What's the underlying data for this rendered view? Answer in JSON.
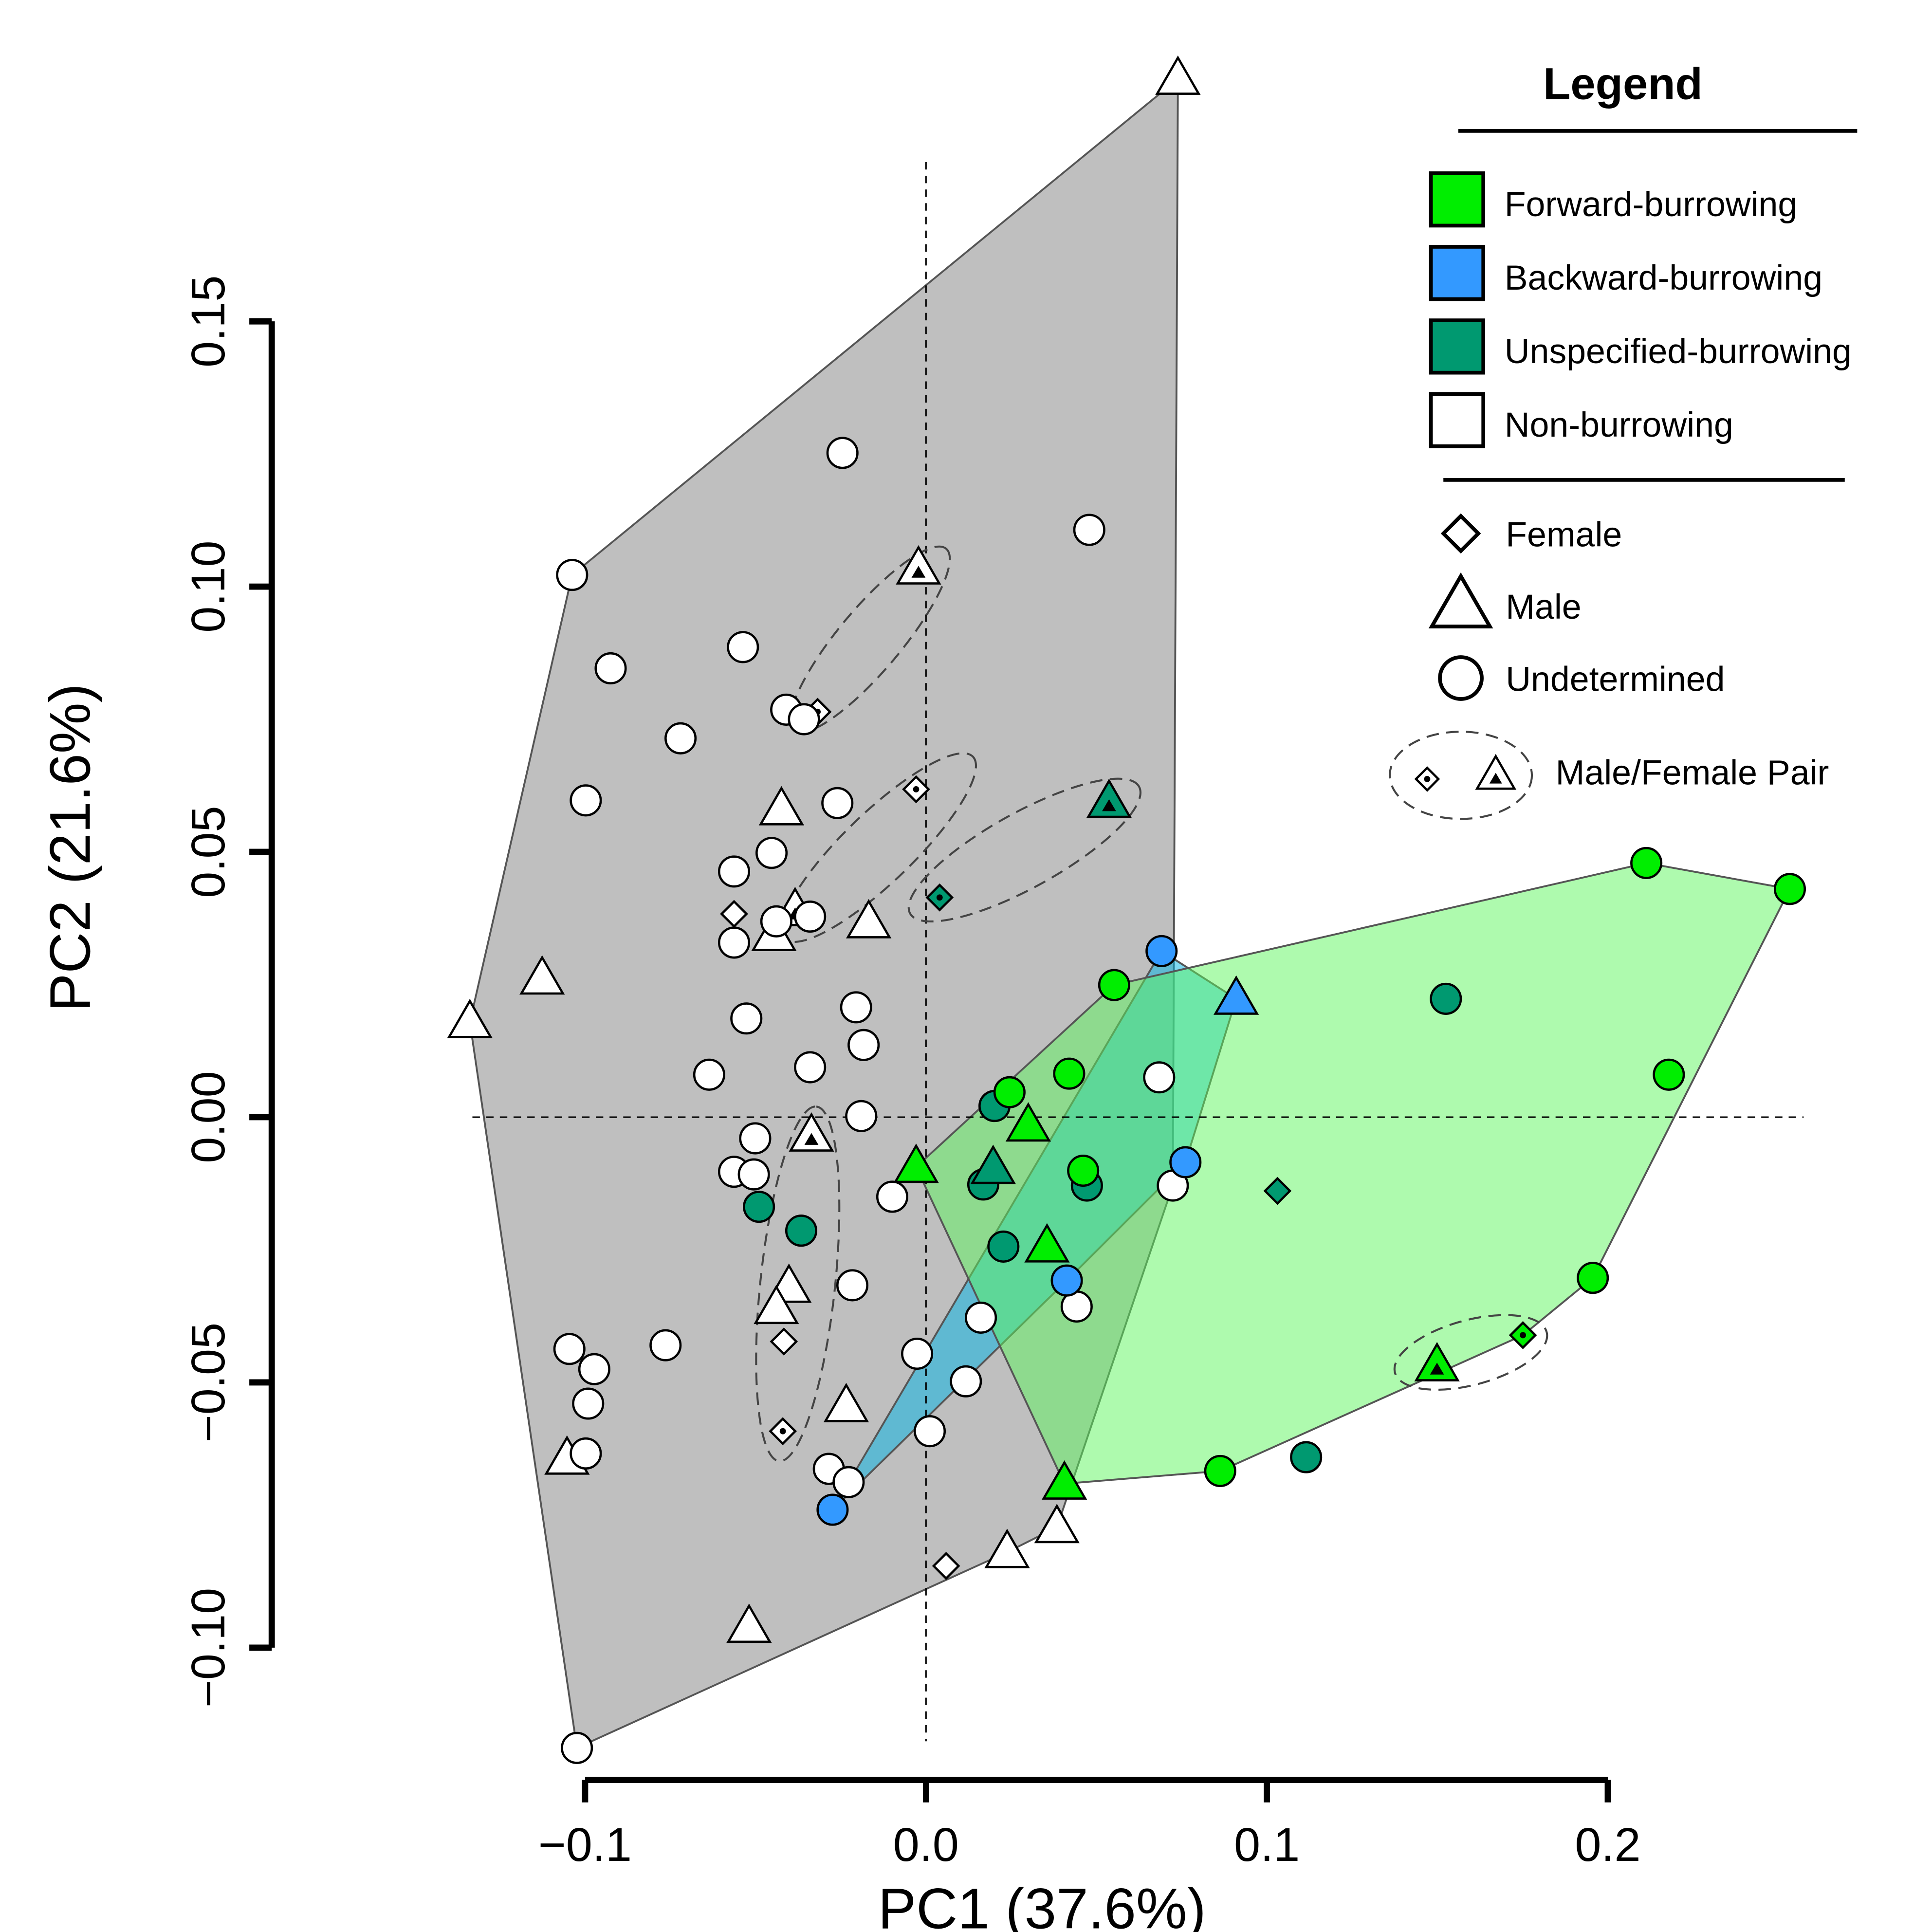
{
  "chart_data": {
    "type": "scatter",
    "x_label": "PC1 (37.6%)",
    "y_label": "PC2 (21.6%)",
    "xlim": [
      -0.14,
      0.26
    ],
    "ylim": [
      -0.12,
      0.2
    ],
    "xticks": [
      {
        "value": -0.1,
        "label": "−0.1"
      },
      {
        "value": 0,
        "label": "0.0"
      },
      {
        "value": 0.1,
        "label": "0.1"
      },
      0.2
    ],
    "yticks": [
      {
        "value": -0.1,
        "label": "−0.10"
      },
      {
        "value": -0.05,
        "label": "−0.05"
      },
      {
        "value": 0,
        "label": "0.00"
      },
      {
        "value": 0.05,
        "label": "0.05"
      },
      {
        "value": 0.1,
        "label": "0.10"
      },
      {
        "value": 0.15,
        "label": "0.15"
      }
    ],
    "zero_lines": true,
    "series": [
      {
        "name": "Forward-burrowing",
        "color": "#00ee00",
        "hull_color": "#5ef55e",
        "x": [
          0.2113,
          0.2534,
          0.0552,
          0.2179,
          0.042,
          0.0245,
          0.0461,
          0.1956,
          0.0863,
          -0.0029,
          0.03,
          0.0355,
          0.0406,
          0.1499,
          0.1751
        ],
        "values": [
          0.0479,
          0.043,
          0.0249,
          0.008,
          0.0082,
          0.0047,
          -0.0101,
          -0.0303,
          -0.0667,
          -0.0094,
          -0.0016,
          -0.0244,
          -0.0691,
          -0.0468,
          -0.0411
        ],
        "shapes": [
          "circle",
          "circle",
          "circle",
          "circle",
          "circle",
          "circle",
          "circle",
          "circle",
          "circle",
          "triangle",
          "triangle",
          "triangle",
          "triangle",
          "triangle",
          "diamond"
        ],
        "paired": [
          false,
          false,
          false,
          false,
          false,
          false,
          false,
          false,
          false,
          false,
          false,
          false,
          false,
          true,
          true
        ]
      },
      {
        "name": "Backward-burrowing",
        "color": "#3399ff",
        "hull_color": "#00b4e6",
        "x": [
          0.0691,
          0.0761,
          0.0413,
          -0.0274,
          0.091
        ],
        "values": [
          0.0313,
          -0.0085,
          -0.0308,
          -0.074,
          0.0223
        ],
        "shapes": [
          "circle",
          "circle",
          "circle",
          "circle",
          "triangle"
        ],
        "paired": [
          false,
          false,
          false,
          false,
          false
        ]
      },
      {
        "name": "Unspecified-burrowing",
        "color": "#009970",
        "x": [
          0.1525,
          0.0201,
          0.0168,
          0.0472,
          0.0227,
          -0.049,
          -0.0366,
          0.1115,
          0.0197,
          0.0537,
          0.004,
          0.1031
        ],
        "values": [
          0.0223,
          0.0021,
          -0.0127,
          -0.0129,
          -0.0244,
          -0.0169,
          -0.0214,
          -0.0641,
          -0.0096,
          0.0594,
          0.0414,
          -0.0139
        ],
        "shapes": [
          "circle",
          "circle",
          "circle",
          "circle",
          "circle",
          "circle",
          "circle",
          "circle",
          "triangle",
          "triangle",
          "diamond",
          "diamond"
        ],
        "paired": [
          false,
          false,
          false,
          false,
          false,
          false,
          false,
          false,
          false,
          true,
          true,
          false
        ]
      },
      {
        "name": "Non-burrowing",
        "color": "#ffffff",
        "hull_color": "#808080",
        "x": [
          0.0739,
          -0.1338,
          -0.1126,
          -0.0424,
          -0.0168,
          -0.0446,
          -0.0384,
          -0.0022,
          -0.0336,
          -0.0402,
          -0.0439,
          -0.0234,
          -0.1053,
          0.0238,
          0.0384,
          -0.0519,
          -0.0563,
          -0.0417,
          0.0059,
          -0.0318,
          -0.0029,
          -0.042,
          -0.0245,
          0.0479,
          -0.1038,
          -0.0925,
          -0.0537,
          -0.041,
          -0.0358,
          -0.072,
          -0.0998,
          -0.026,
          -0.0453,
          -0.0563,
          -0.034,
          -0.0439,
          -0.0563,
          -0.0205,
          -0.0527,
          -0.0183,
          -0.034,
          -0.0636,
          0.0684,
          -0.019,
          -0.0501,
          -0.0563,
          -0.0505,
          0.0724,
          -0.0099,
          -0.0216,
          0.0442,
          0.0161,
          -0.1046,
          -0.0973,
          -0.0764,
          -0.0991,
          -0.0026,
          0.0117,
          -0.0998,
          0.0011,
          -0.0285,
          -0.0227,
          -0.1024
        ],
        "values": [
          0.1957,
          0.0179,
          0.0261,
          0.058,
          0.0367,
          0.0343,
          0.039,
          0.1034,
          -0.0035,
          -0.032,
          -0.036,
          -0.0545,
          -0.0644,
          -0.082,
          -0.0773,
          -0.0961,
          0.0383,
          -0.0423,
          -0.0846,
          0.0764,
          0.0618,
          -0.0592,
          0.1252,
          0.1107,
          0.1022,
          0.0846,
          0.0886,
          0.0768,
          0.075,
          0.0714,
          0.0597,
          0.0592,
          0.0498,
          0.0463,
          0.0378,
          0.0369,
          0.0329,
          0.0207,
          0.0186,
          0.0136,
          0.0094,
          0.008,
          0.0075,
          0.0002,
          -0.004,
          -0.0103,
          -0.0108,
          -0.0129,
          -0.015,
          -0.0317,
          -0.0357,
          -0.0378,
          -0.0437,
          -0.0475,
          -0.043,
          -0.054,
          -0.0446,
          -0.0498,
          -0.0634,
          -0.0592,
          -0.0663,
          -0.0688,
          -0.1189
        ],
        "shapes": [
          "triangle",
          "triangle",
          "triangle",
          "triangle",
          "triangle",
          "triangle",
          "triangle",
          "triangle",
          "triangle",
          "triangle",
          "triangle",
          "triangle",
          "triangle",
          "triangle",
          "triangle",
          "triangle",
          "diamond",
          "diamond",
          "diamond",
          "diamond",
          "diamond",
          "diamond",
          "circle",
          "circle",
          "circle",
          "circle",
          "circle",
          "circle",
          "circle",
          "circle",
          "circle",
          "circle",
          "circle",
          "circle",
          "circle",
          "circle",
          "circle",
          "circle",
          "circle",
          "circle",
          "circle",
          "circle",
          "circle",
          "circle",
          "circle",
          "circle",
          "circle",
          "circle",
          "circle",
          "circle",
          "circle",
          "circle",
          "circle",
          "circle",
          "circle",
          "circle",
          "circle",
          "circle",
          "circle",
          "circle",
          "circle",
          "circle",
          "circle"
        ],
        "paired": [
          false,
          false,
          false,
          false,
          false,
          false,
          true,
          true,
          true,
          false,
          false,
          false,
          false,
          false,
          false,
          false,
          false,
          false,
          false,
          true,
          true,
          true,
          false,
          false,
          false,
          false,
          false,
          false,
          false,
          false,
          false,
          false,
          false,
          false,
          false,
          false,
          false,
          false,
          false,
          false,
          false,
          false,
          false,
          false,
          false,
          false,
          false,
          false,
          false,
          false,
          false,
          false,
          false,
          false,
          false,
          false,
          false,
          false,
          false,
          false,
          false,
          false,
          false
        ]
      }
    ],
    "legend": {
      "title": "Legend",
      "shapes": [
        {
          "name": "Female",
          "shape": "diamond"
        },
        {
          "name": "Male",
          "shape": "triangle"
        },
        {
          "name": "Undetermined",
          "shape": "circle"
        }
      ],
      "pair_label": "Male/Female Pair"
    }
  }
}
